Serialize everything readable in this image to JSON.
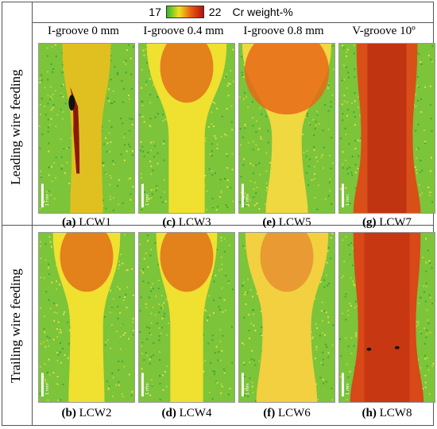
{
  "colorbar": {
    "min_label": "17",
    "max_label": "22",
    "label": "Cr weight-%",
    "colors": [
      "#2fb82f",
      "#f0e020",
      "#e85a10",
      "#b81010"
    ]
  },
  "columns": [
    {
      "header": "I-groove 0 mm"
    },
    {
      "header": "I-groove 0.4 mm"
    },
    {
      "header": "I-groove 0.8 mm"
    },
    {
      "header": "V-groove 10º"
    }
  ],
  "rows": [
    {
      "label": "Leading wire feeding",
      "panels": [
        {
          "letter": "(a)",
          "name": "LCW1"
        },
        {
          "letter": "(c)",
          "name": "LCW3"
        },
        {
          "letter": "(e)",
          "name": "LCW5"
        },
        {
          "letter": "(g)",
          "name": "LCW7"
        }
      ]
    },
    {
      "label": "Trailing wire feeding",
      "panels": [
        {
          "letter": "(b)",
          "name": "LCW2"
        },
        {
          "letter": "(d)",
          "name": "LCW4"
        },
        {
          "letter": "(f)",
          "name": "LCW6"
        },
        {
          "letter": "(h)",
          "name": "LCW8"
        }
      ]
    }
  ],
  "scale_marker_text": "1 mm"
}
